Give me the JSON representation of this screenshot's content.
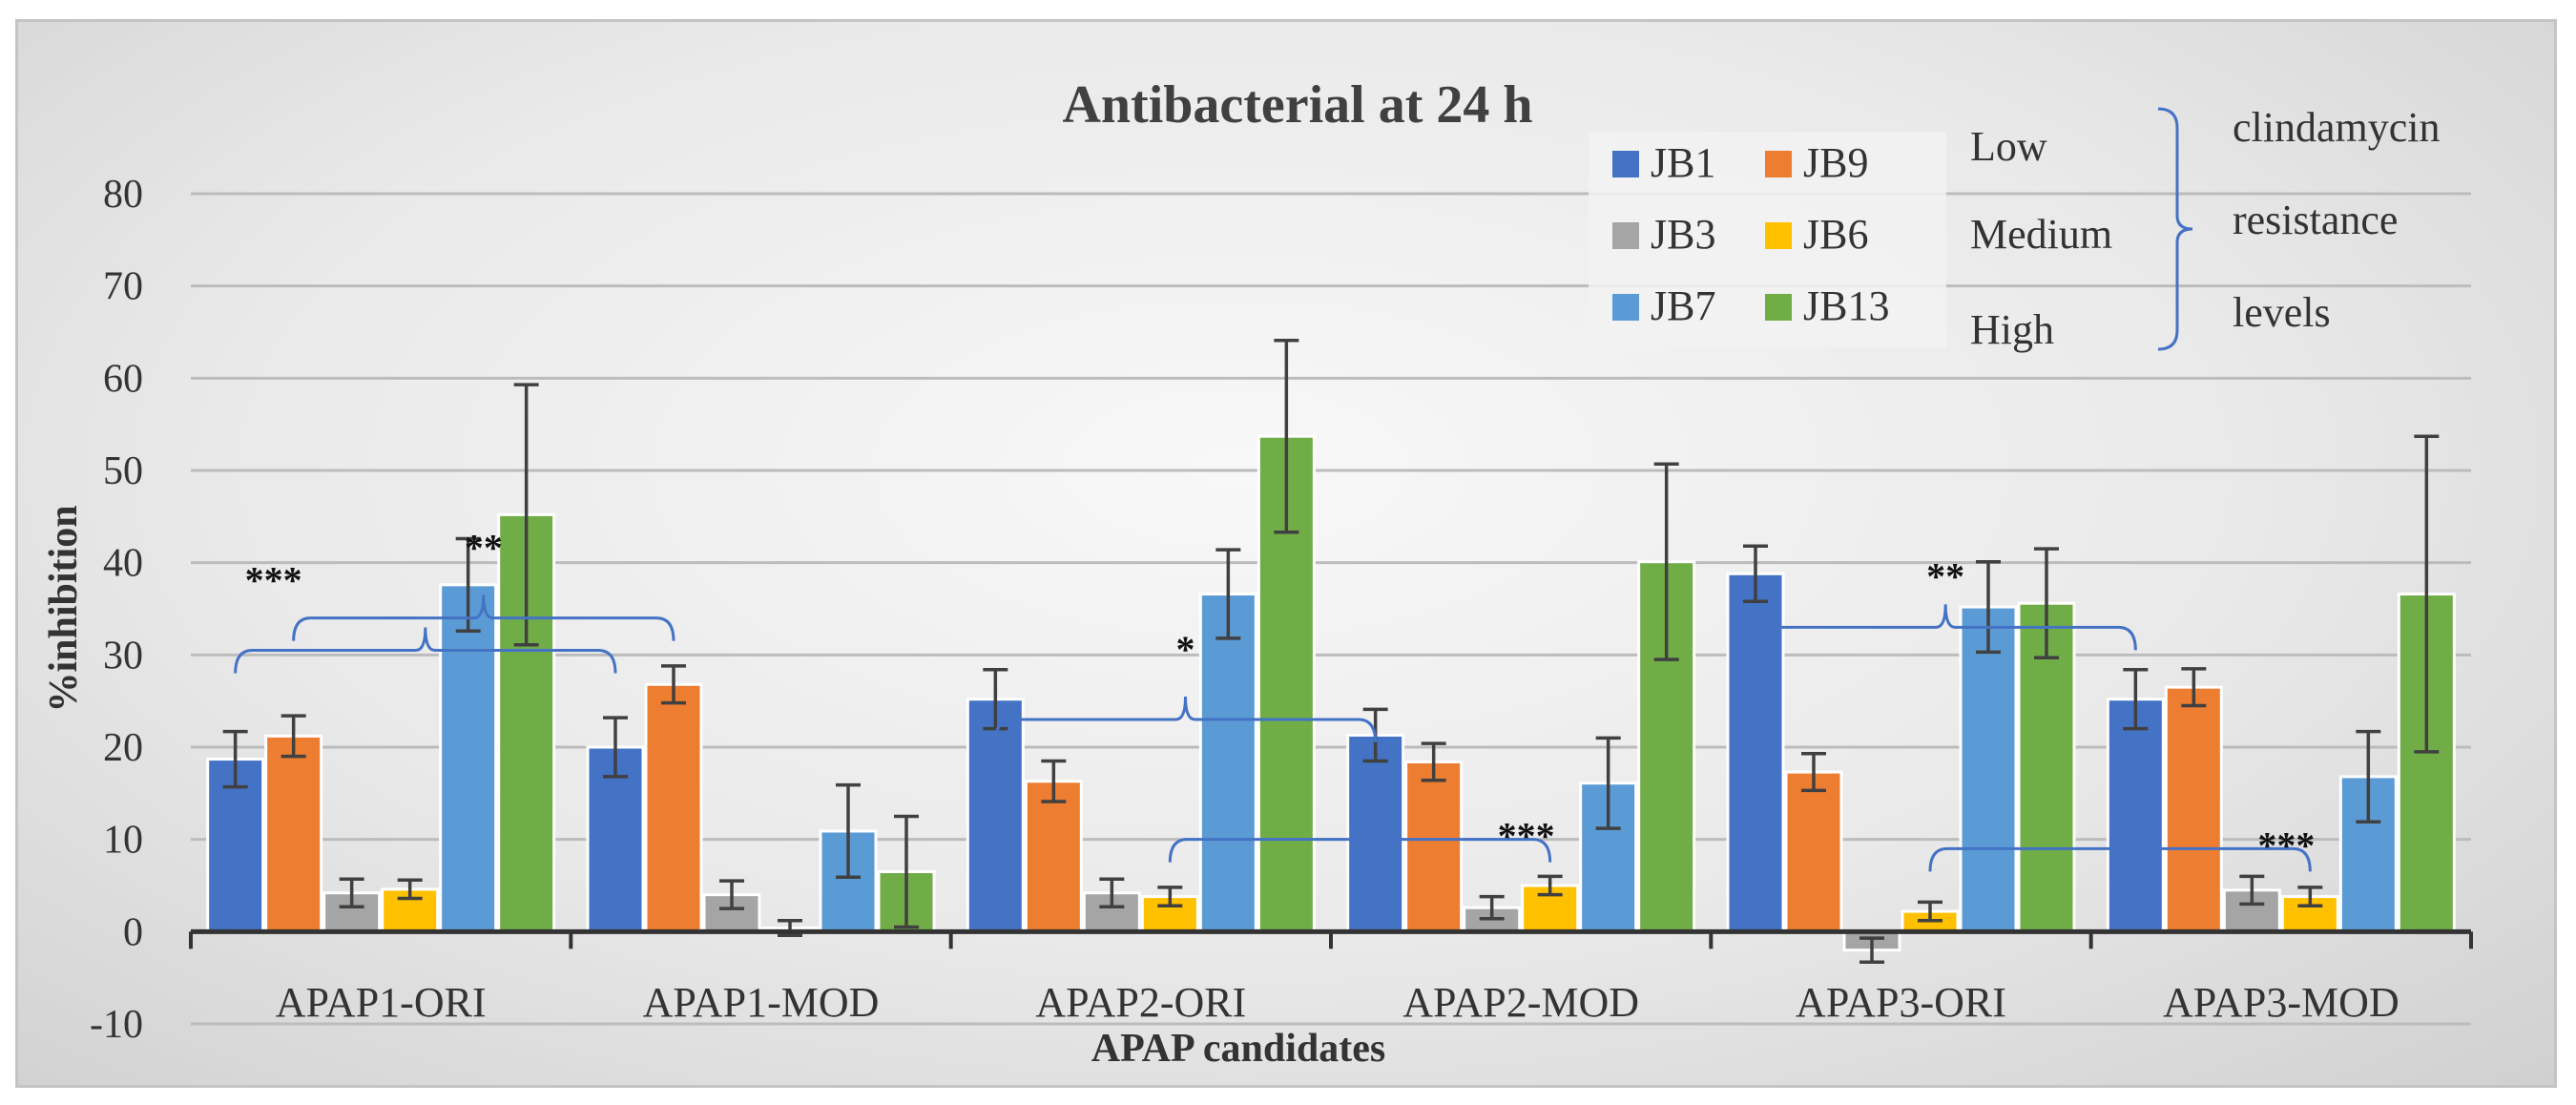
{
  "chart_data": {
    "type": "bar",
    "title": "Antibacterial at 24 h",
    "xlabel": "APAP candidates",
    "ylabel": "%inhibition",
    "ylim": [
      -10,
      80
    ],
    "yticks": [
      "80",
      "70",
      "60",
      "50",
      "40",
      "30",
      "20",
      "10",
      "0",
      "-10"
    ],
    "grid": true,
    "categories": [
      "APAP1-ORI",
      "APAP1-MOD",
      "APAP2-ORI",
      "APAP2-MOD",
      "APAP3-ORI",
      "APAP3-MOD"
    ],
    "series": [
      {
        "name": "JB1",
        "color": "#4472c4",
        "values": [
          18.7,
          20.0,
          25.2,
          21.3,
          38.8,
          25.2
        ],
        "errors": [
          3.0,
          3.2,
          3.2,
          2.8,
          3.0,
          3.2
        ]
      },
      {
        "name": "JB9",
        "color": "#ed7d31",
        "values": [
          21.2,
          26.8,
          16.3,
          18.4,
          17.3,
          26.5
        ],
        "errors": [
          2.2,
          2.0,
          2.2,
          2.0,
          2.0,
          2.0
        ]
      },
      {
        "name": "JB3",
        "color": "#a5a5a5",
        "values": [
          4.2,
          4.0,
          4.2,
          2.6,
          -2.0,
          4.5
        ],
        "errors": [
          1.5,
          1.5,
          1.5,
          1.2,
          1.3,
          1.5
        ]
      },
      {
        "name": "JB6",
        "color": "#ffc000",
        "values": [
          4.6,
          0.4,
          3.8,
          5.0,
          2.2,
          3.8
        ],
        "errors": [
          1.0,
          0.8,
          1.0,
          1.0,
          1.0,
          1.0
        ]
      },
      {
        "name": "JB7",
        "color": "#5b9bd5",
        "values": [
          37.6,
          10.9,
          36.6,
          16.1,
          35.2,
          16.8
        ],
        "errors": [
          5.0,
          5.0,
          4.8,
          4.9,
          4.9,
          4.9
        ]
      },
      {
        "name": "JB13",
        "color": "#70ad47",
        "values": [
          45.2,
          6.5,
          53.7,
          40.1,
          35.6,
          36.6
        ],
        "errors": [
          14.1,
          6.0,
          10.4,
          10.6,
          5.9,
          17.1
        ]
      }
    ],
    "legend": {
      "position": "top-right",
      "levels": [
        "Low",
        "Medium",
        "High"
      ],
      "bracket_label": [
        "clindamycin",
        "resistance",
        "levels"
      ]
    },
    "annotations": [
      {
        "label": "***",
        "from": "APAP1-ORI JB1",
        "to": "APAP1-MOD JB1"
      },
      {
        "label": "**",
        "from": "APAP1-ORI JB9",
        "to": "APAP1-MOD JB9"
      },
      {
        "label": "*",
        "from": "APAP2-ORI JB1",
        "to": "APAP2-MOD JB1"
      },
      {
        "label": "***",
        "from": "APAP2-ORI JB6",
        "to": "APAP2-MOD JB6"
      },
      {
        "label": "**",
        "from": "APAP3-ORI JB1",
        "to": "APAP3-MOD JB1"
      },
      {
        "label": "***",
        "from": "APAP3-ORI JB6",
        "to": "APAP3-MOD JB6"
      }
    ]
  }
}
